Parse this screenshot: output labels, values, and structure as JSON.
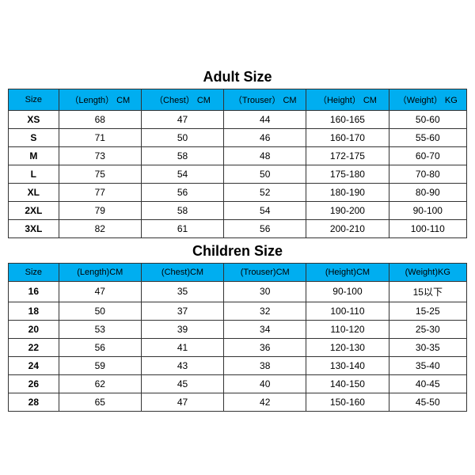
{
  "adult": {
    "title": "Adult Size",
    "header_bg": "#00aef0",
    "columns": [
      "Size",
      "（Length） CM",
      "（Chest） CM",
      "（Trouser） CM",
      "（Height） CM",
      "（Weight） KG"
    ],
    "rows": [
      [
        "XS",
        "68",
        "47",
        "44",
        "160-165",
        "50-60"
      ],
      [
        "S",
        "71",
        "50",
        "46",
        "160-170",
        "55-60"
      ],
      [
        "M",
        "73",
        "58",
        "48",
        "172-175",
        "60-70"
      ],
      [
        "L",
        "75",
        "54",
        "50",
        "175-180",
        "70-80"
      ],
      [
        "XL",
        "77",
        "56",
        "52",
        "180-190",
        "80-90"
      ],
      [
        "2XL",
        "79",
        "58",
        "54",
        "190-200",
        "90-100"
      ],
      [
        "3XL",
        "82",
        "61",
        "56",
        "200-210",
        "100-110"
      ]
    ]
  },
  "children": {
    "title": "Children Size",
    "header_bg": "#00aef0",
    "columns": [
      "Size",
      "(Length)CM",
      "(Chest)CM",
      "(Trouser)CM",
      "(Height)CM",
      "(Weight)KG"
    ],
    "rows": [
      [
        "16",
        "47",
        "35",
        "30",
        "90-100",
        "15以下"
      ],
      [
        "18",
        "50",
        "37",
        "32",
        "100-110",
        "15-25"
      ],
      [
        "20",
        "53",
        "39",
        "34",
        "110-120",
        "25-30"
      ],
      [
        "22",
        "56",
        "41",
        "36",
        "120-130",
        "30-35"
      ],
      [
        "24",
        "59",
        "43",
        "38",
        "130-140",
        "35-40"
      ],
      [
        "26",
        "62",
        "45",
        "40",
        "140-150",
        "40-45"
      ],
      [
        "28",
        "65",
        "47",
        "42",
        "150-160",
        "45-50"
      ]
    ]
  }
}
